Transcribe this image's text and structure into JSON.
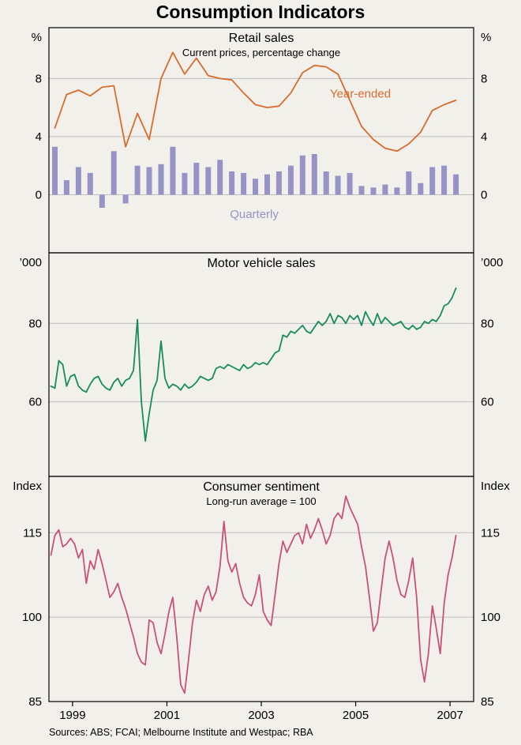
{
  "title": "Consumption Indicators",
  "sources": "Sources: ABS; FCAI; Melbourne Institute and Westpac; RBA",
  "colors": {
    "year_ended": "#D96B2D",
    "quarterly": "#9693C5",
    "motor": "#168C5A",
    "sentiment": "#CA5177",
    "grid": "#BEBEBE",
    "frame": "#000000",
    "background": "#F2F0EB"
  },
  "x_axis": {
    "start": 1998.5,
    "end": 2007.5,
    "tick_positions": [
      1999,
      2001,
      2003,
      2005,
      2007
    ],
    "tick_labels": [
      "1999",
      "2001",
      "2003",
      "2005",
      "2007"
    ]
  },
  "chart_data": [
    {
      "type": "bar",
      "title": "Retail sales",
      "subtitle": "Current prices, percentage change",
      "unit_left": "%",
      "unit_right": "%",
      "ylim": [
        -4,
        11.5
      ],
      "yticks": [
        0,
        4,
        8
      ],
      "series": [
        {
          "name": "Quarterly",
          "type": "bar",
          "color_key": "quarterly",
          "x_start": 1998.625,
          "x_step": 0.25,
          "values": [
            3.3,
            1.0,
            1.9,
            1.5,
            -0.9,
            3.0,
            -0.6,
            2.0,
            1.9,
            2.1,
            3.3,
            1.5,
            2.2,
            1.9,
            2.4,
            1.6,
            1.5,
            1.1,
            1.4,
            1.6,
            2.0,
            2.7,
            2.8,
            1.6,
            1.3,
            1.5,
            0.6,
            0.5,
            0.7,
            0.5,
            1.6,
            0.8,
            1.9,
            2.0,
            1.4
          ]
        },
        {
          "name": "Year-ended",
          "type": "line",
          "color_key": "year_ended",
          "x_start": 1998.625,
          "x_step": 0.25,
          "values": [
            4.6,
            6.9,
            7.2,
            6.8,
            7.4,
            7.5,
            3.3,
            5.6,
            3.8,
            8.0,
            9.8,
            8.3,
            9.4,
            8.2,
            8.0,
            7.9,
            7.0,
            6.2,
            6.0,
            6.1,
            7.0,
            8.4,
            8.9,
            8.8,
            8.3,
            6.5,
            4.7,
            3.8,
            3.2,
            3.0,
            3.5,
            4.3,
            5.8,
            6.2,
            6.5
          ]
        }
      ],
      "annotations": [
        {
          "text": "Year-ended",
          "x": 2005.1,
          "y": 6.7,
          "color_key": "year_ended"
        },
        {
          "text": "Quarterly",
          "x": 2002.85,
          "y": -1.6,
          "color_key": "quarterly"
        }
      ]
    },
    {
      "type": "line",
      "title": "Motor vehicle sales",
      "subtitle": "",
      "unit_left": "’000",
      "unit_right": "’000",
      "ylim": [
        41,
        98
      ],
      "yticks": [
        60,
        80
      ],
      "series": [
        {
          "name": "Motor vehicle sales",
          "type": "line",
          "color_key": "motor",
          "x_start": 1998.542,
          "x_step": 0.083333,
          "values": [
            64,
            63.5,
            70.5,
            69.5,
            64,
            66.5,
            67,
            64,
            63,
            62.5,
            64.5,
            66,
            66.5,
            64.5,
            63.5,
            63,
            65,
            66,
            64,
            65.5,
            66,
            68,
            81,
            60,
            50,
            57,
            63,
            65.5,
            75.5,
            66,
            63.5,
            64.5,
            64,
            63,
            64.5,
            63.5,
            64,
            65,
            66.5,
            66,
            65.5,
            66,
            68.5,
            69,
            68.5,
            69.5,
            69,
            68.5,
            68,
            69.5,
            68.5,
            69,
            70,
            69.5,
            70,
            69.5,
            71,
            72.5,
            73,
            77,
            76.5,
            78,
            77.5,
            78.5,
            79.5,
            78,
            77.5,
            79,
            80.5,
            79.5,
            80.5,
            82.5,
            80,
            82,
            81.5,
            80,
            82,
            81,
            82,
            79.5,
            83,
            81,
            79.5,
            82.5,
            80,
            81.5,
            80.5,
            79.5,
            80,
            80.5,
            79,
            78.5,
            79.5,
            78.5,
            79,
            80.5,
            80,
            81,
            80.5,
            82,
            84.5,
            85,
            86.5,
            89
          ]
        }
      ],
      "annotations": []
    },
    {
      "type": "line",
      "title": "Consumer sentiment",
      "subtitle": "Long-run average = 100",
      "unit_left": "Index",
      "unit_right": "Index",
      "ylim": [
        85,
        125
      ],
      "yticks": [
        85,
        100,
        115
      ],
      "series": [
        {
          "name": "Consumer sentiment",
          "type": "line",
          "color_key": "sentiment",
          "x_start": 1998.542,
          "x_step": 0.083333,
          "values": [
            111,
            114.5,
            115.5,
            112.5,
            113,
            114,
            113,
            110.5,
            112,
            106,
            110,
            108.5,
            112,
            109.5,
            106.5,
            103.5,
            104.5,
            106,
            103.5,
            101.5,
            99,
            96.5,
            93.5,
            92,
            91.5,
            99.5,
            99,
            95.5,
            93.5,
            97,
            101,
            103.5,
            96.5,
            88,
            86.5,
            92.5,
            99,
            103,
            101,
            104,
            105.5,
            103,
            104.5,
            109,
            117,
            110,
            108,
            109.5,
            106,
            103.5,
            102.5,
            102,
            104,
            107.5,
            101,
            99.5,
            98.5,
            104,
            109.5,
            113.5,
            111.5,
            113,
            114.5,
            115,
            113,
            116.5,
            114,
            115.5,
            117.5,
            115.5,
            113,
            114.5,
            117.5,
            118.5,
            117.5,
            121.5,
            119.5,
            118,
            116.5,
            112.5,
            109,
            103.5,
            97.5,
            99,
            105,
            110.5,
            113.5,
            110.5,
            106.5,
            104,
            103.5,
            106.5,
            110.5,
            103.5,
            92.5,
            88.5,
            93.5,
            102,
            98,
            93.5,
            102.5,
            107.5,
            110.5,
            114.5
          ]
        }
      ],
      "annotations": []
    }
  ]
}
